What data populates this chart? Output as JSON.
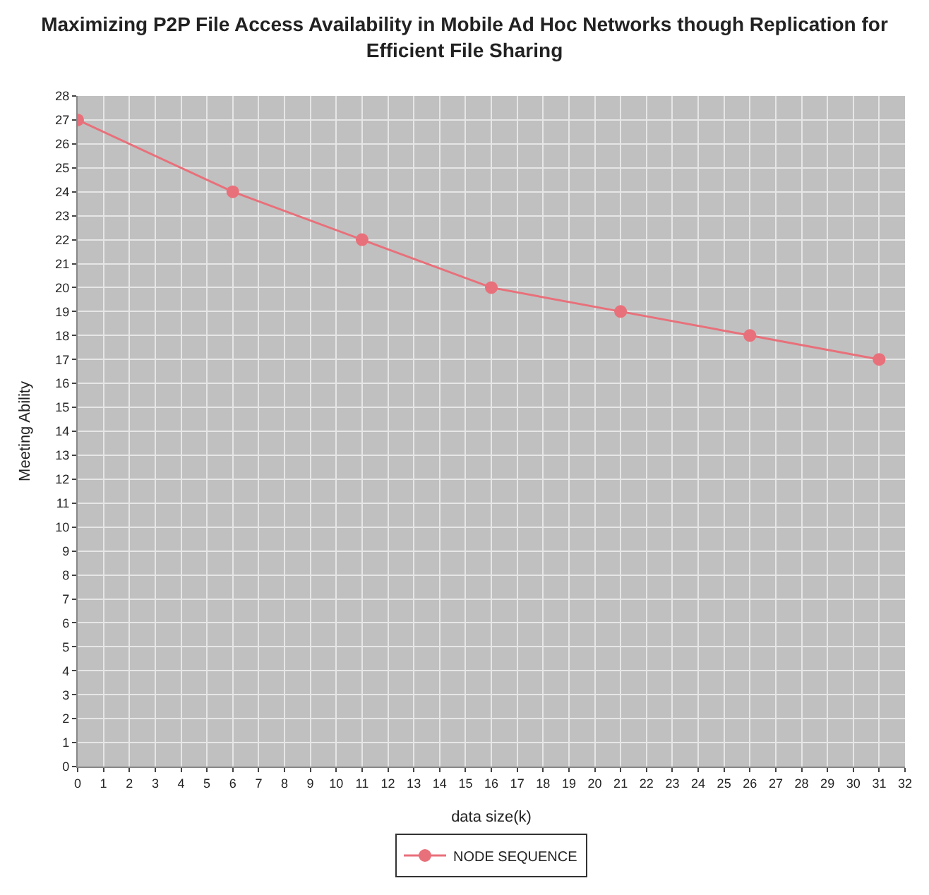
{
  "chart_data": {
    "type": "line",
    "title": "Maximizing P2P File Access Availability in Mobile Ad Hoc Networks though Replication for\nEfficient File Sharing",
    "xlabel": "data size(k)",
    "ylabel": "Meeting Ability",
    "x": [
      0,
      6,
      11,
      16,
      21,
      26,
      31
    ],
    "series": [
      {
        "name": "NODE SEQUENCE",
        "color": "#e8707a",
        "values": [
          27,
          24,
          22,
          20,
          19,
          18,
          17
        ]
      }
    ],
    "xlim": [
      0,
      32
    ],
    "xticks": [
      0,
      1,
      2,
      3,
      4,
      5,
      6,
      7,
      8,
      9,
      10,
      11,
      12,
      13,
      14,
      15,
      16,
      17,
      18,
      19,
      20,
      21,
      22,
      23,
      24,
      25,
      26,
      27,
      28,
      29,
      30,
      31,
      32
    ],
    "ylim": [
      0,
      28
    ],
    "yticks": [
      0,
      1,
      2,
      3,
      4,
      5,
      6,
      7,
      8,
      9,
      10,
      11,
      12,
      13,
      14,
      15,
      16,
      17,
      18,
      19,
      20,
      21,
      22,
      23,
      24,
      25,
      26,
      27,
      28
    ],
    "grid": true,
    "legend": "bottom",
    "marker": "circle",
    "line_style": "solid"
  }
}
